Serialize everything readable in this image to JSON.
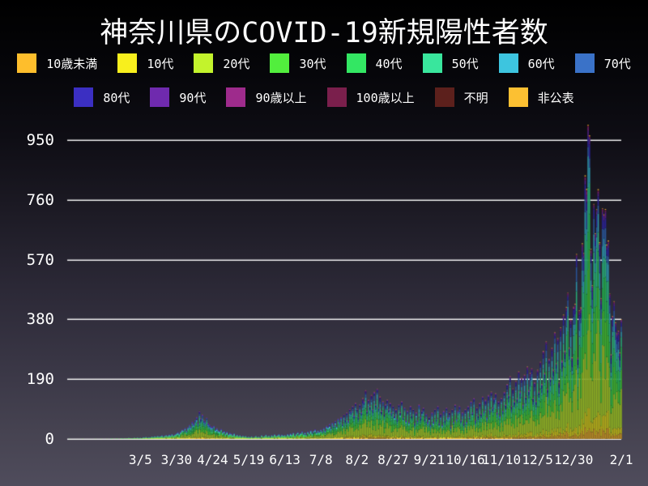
{
  "title": "神奈川県のCOVID-19新規陽性者数",
  "chart_data": {
    "type": "bar",
    "subtype": "stacked-daily-bars",
    "title": "神奈川県のCOVID-19新規陽性者数",
    "xlabel": "",
    "ylabel": "",
    "ylim": [
      0,
      998
    ],
    "grid": "horizontal-white-lines",
    "legend_position": "top-two-rows",
    "y_ticks": [
      0,
      190,
      380,
      570,
      760,
      950
    ],
    "x_ticks": [
      {
        "label": "3/5",
        "day": 49
      },
      {
        "label": "3/30",
        "day": 74
      },
      {
        "label": "4/24",
        "day": 99
      },
      {
        "label": "5/19",
        "day": 124
      },
      {
        "label": "6/13",
        "day": 149
      },
      {
        "label": "7/8",
        "day": 174
      },
      {
        "label": "8/2",
        "day": 199
      },
      {
        "label": "8/27",
        "day": 224
      },
      {
        "label": "9/21",
        "day": 249
      },
      {
        "label": "10/16",
        "day": 274
      },
      {
        "label": "11/10",
        "day": 299
      },
      {
        "label": "12/5",
        "day": 324
      },
      {
        "label": "12/30",
        "day": 349
      },
      {
        "label": "2/1",
        "day": 382
      }
    ],
    "days_total": 383,
    "series": [
      {
        "id": "age-under-10",
        "name": "10歳未満",
        "color": "#FEBE2C",
        "fraction": 0.035
      },
      {
        "id": "age-10s",
        "name": "10代",
        "color": "#F8EF1D",
        "fraction": 0.055
      },
      {
        "id": "age-20s",
        "name": "20代",
        "color": "#C3F32C",
        "fraction": 0.27
      },
      {
        "id": "age-30s",
        "name": "30代",
        "color": "#52EE3D",
        "fraction": 0.16
      },
      {
        "id": "age-40s",
        "name": "40代",
        "color": "#33E763",
        "fraction": 0.145
      },
      {
        "id": "age-50s",
        "name": "50代",
        "color": "#39E69D",
        "fraction": 0.125
      },
      {
        "id": "age-60s",
        "name": "60代",
        "color": "#3DC5DF",
        "fraction": 0.07
      },
      {
        "id": "age-70s",
        "name": "70代",
        "color": "#3A72C8",
        "fraction": 0.06
      },
      {
        "id": "age-80s",
        "name": "80代",
        "color": "#3B2FC2",
        "fraction": 0.045
      },
      {
        "id": "age-90s",
        "name": "90代",
        "color": "#6F2AAE",
        "fraction": 0.02
      },
      {
        "id": "age-90-plus",
        "name": "90歳以上",
        "color": "#9E2B8C",
        "fraction": 0.008
      },
      {
        "id": "age-100-plus",
        "name": "100歳以上",
        "color": "#7A1F4C",
        "fraction": 0.002
      },
      {
        "id": "unknown",
        "name": "不明",
        "color": "#5C201C",
        "fraction": 0.002
      },
      {
        "id": "undisclosed",
        "name": "非公表",
        "color": "#FCC032",
        "fraction": 0.003
      }
    ],
    "legend_rows": [
      8,
      6
    ],
    "daily_totals": [
      1,
      0,
      0,
      0,
      0,
      0,
      0,
      0,
      0,
      1,
      0,
      0,
      0,
      0,
      0,
      0,
      0,
      0,
      1,
      0,
      0,
      0,
      1,
      0,
      0,
      0,
      1,
      0,
      0,
      2,
      1,
      0,
      1,
      2,
      0,
      1,
      3,
      2,
      1,
      3,
      2,
      4,
      3,
      2,
      3,
      4,
      2,
      5,
      3,
      4,
      3,
      6,
      5,
      7,
      4,
      6,
      5,
      8,
      6,
      9,
      7,
      10,
      8,
      9,
      12,
      7,
      11,
      13,
      10,
      14,
      12,
      16,
      11,
      15,
      18,
      22,
      17,
      25,
      30,
      28,
      35,
      26,
      38,
      45,
      40,
      55,
      48,
      60,
      70,
      52,
      88,
      65,
      78,
      60,
      55,
      68,
      50,
      45,
      40,
      38,
      42,
      30,
      35,
      28,
      25,
      32,
      22,
      26,
      18,
      24,
      15,
      20,
      17,
      12,
      18,
      10,
      14,
      9,
      12,
      8,
      11,
      7,
      10,
      6,
      8,
      5,
      9,
      4,
      7,
      10,
      6,
      8,
      5,
      12,
      7,
      9,
      14,
      8,
      11,
      6,
      13,
      9,
      15,
      10,
      12,
      16,
      9,
      14,
      11,
      13,
      9,
      16,
      12,
      18,
      14,
      20,
      11,
      17,
      22,
      15,
      19,
      25,
      16,
      21,
      14,
      24,
      18,
      28,
      20,
      26,
      31,
      22,
      27,
      24,
      30,
      25,
      35,
      28,
      42,
      38,
      48,
      35,
      52,
      44,
      58,
      40,
      65,
      55,
      70,
      48,
      78,
      62,
      85,
      58,
      95,
      88,
      105,
      75,
      115,
      95,
      70,
      110,
      85,
      130,
      120,
      155,
      90,
      125,
      105,
      140,
      95,
      150,
      110,
      160,
      100,
      135,
      90,
      120,
      80,
      110,
      125,
      95,
      115,
      85,
      105,
      75,
      95,
      65,
      110,
      85,
      120,
      70,
      100,
      60,
      90,
      55,
      105,
      75,
      95,
      50,
      85,
      60,
      110,
      70,
      90,
      100,
      65,
      80,
      55,
      70,
      45,
      85,
      55,
      95,
      65,
      105,
      50,
      80,
      45,
      90,
      60,
      100,
      70,
      85,
      40,
      95,
      55,
      110,
      65,
      90,
      105,
      60,
      85,
      50,
      95,
      55,
      105,
      70,
      120,
      85,
      130,
      60,
      100,
      75,
      115,
      80,
      135,
      90,
      125,
      70,
      140,
      95,
      150,
      100,
      130,
      145,
      85,
      120,
      75,
      130,
      90,
      150,
      110,
      175,
      140,
      200,
      105,
      160,
      120,
      185,
      130,
      215,
      150,
      195,
      110,
      205,
      135,
      230,
      155,
      210,
      225,
      130,
      180,
      120,
      220,
      150,
      245,
      175,
      280,
      210,
      310,
      160,
      255,
      195,
      290,
      220,
      340,
      240,
      320,
      180,
      355,
      250,
      395,
      280,
      420,
      465,
      290,
      380,
      260,
      420,
      430,
      588,
      258,
      408,
      418,
      622,
      591,
      838,
      795,
      999,
      965,
      604,
      488,
      747,
      654,
      731,
      794,
      625,
      448,
      733,
      714,
      731,
      618,
      631,
      462,
      270,
      391,
      438,
      371,
      336,
      345,
      274,
      380
    ]
  },
  "style": {
    "background_top": "#000000",
    "background_bottom": "#4f4c5c",
    "gridline_color": "#f0f0f0",
    "text_color": "#ffffff",
    "bar_outline": "rgba(10,10,20,0.55)"
  }
}
